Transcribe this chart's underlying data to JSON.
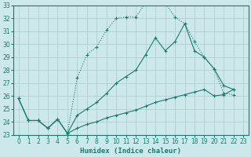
{
  "xlabel": "Humidex (Indice chaleur)",
  "xlim": [
    -0.5,
    23.5
  ],
  "ylim": [
    23,
    33
  ],
  "yticks": [
    23,
    24,
    25,
    26,
    27,
    28,
    29,
    30,
    31,
    32,
    33
  ],
  "xticks": [
    0,
    1,
    2,
    3,
    4,
    5,
    6,
    7,
    8,
    9,
    10,
    11,
    12,
    13,
    14,
    15,
    16,
    17,
    18,
    19,
    20,
    21,
    22,
    23
  ],
  "background_color": "#cce8ea",
  "grid_color": "#b0ced2",
  "line_color": "#1a7a6e",
  "line1_x": [
    0,
    1,
    2,
    3,
    4,
    5,
    6,
    7,
    8,
    9,
    10,
    11,
    12,
    13,
    14,
    15,
    16,
    17,
    18,
    19,
    20,
    21,
    22
  ],
  "line1_y": [
    25.8,
    24.1,
    24.1,
    23.5,
    24.2,
    23.1,
    27.4,
    29.2,
    29.8,
    31.1,
    32.0,
    32.1,
    32.1,
    33.2,
    33.2,
    33.2,
    32.1,
    31.6,
    30.2,
    29.0,
    28.1,
    26.2,
    26.1
  ],
  "line2_x": [
    0,
    1,
    2,
    3,
    4,
    5,
    6,
    7,
    8,
    9,
    10,
    11,
    12,
    13,
    14,
    15,
    16,
    17,
    18,
    19,
    20,
    21,
    22
  ],
  "line2_y": [
    25.8,
    24.1,
    24.1,
    23.5,
    24.2,
    23.1,
    24.5,
    25.0,
    25.5,
    26.2,
    27.0,
    27.5,
    28.0,
    29.2,
    30.5,
    29.5,
    30.2,
    31.6,
    29.5,
    29.0,
    28.1,
    26.8,
    26.5
  ],
  "line3_x": [
    0,
    1,
    2,
    3,
    4,
    5,
    6,
    7,
    8,
    9,
    10,
    11,
    12,
    13,
    14,
    15,
    16,
    17,
    18,
    19,
    20,
    21,
    22
  ],
  "line3_y": [
    25.8,
    24.1,
    24.1,
    23.5,
    24.2,
    23.1,
    23.5,
    23.8,
    24.0,
    24.3,
    24.5,
    24.7,
    24.9,
    25.2,
    25.5,
    25.7,
    25.9,
    26.1,
    26.3,
    26.5,
    26.0,
    26.1,
    26.5
  ]
}
